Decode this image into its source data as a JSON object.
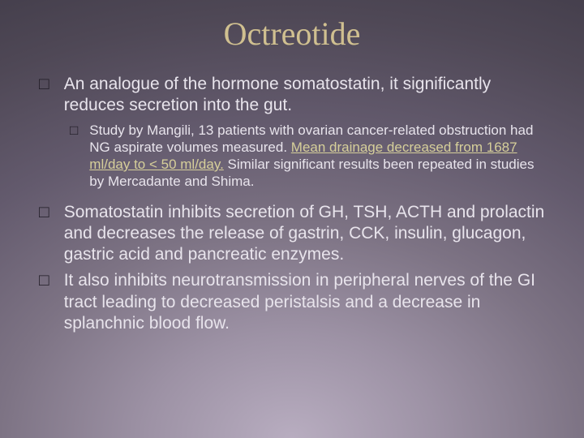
{
  "title": {
    "text": "Octreotide",
    "color": "#d0c090",
    "fontsize": 40
  },
  "bullets": {
    "marker": "□",
    "marker_color": "#1e1a24",
    "text_color": "#e8e4ec",
    "highlight_color": "#d6cf9a",
    "l1_fontsize": 21,
    "l2_fontsize": 17,
    "items": [
      {
        "level": 1,
        "text": "An analogue of the hormone somatostatin, it significantly reduces secretion into the gut."
      },
      {
        "level": 2,
        "pre": "Study by Mangili, 13 patients with ovarian cancer-related obstruction had NG aspirate volumes measured. ",
        "hl": "Mean drainage decreased from 1687 ml/day to < 50 ml/day.",
        "post": " Similar significant results been repeated in studies by Mercadante and Shima."
      },
      {
        "level": 1,
        "text": "Somatostatin inhibits secretion of GH, TSH, ACTH and prolactin and decreases the release of gastrin, CCK, insulin, glucagon, gastric acid and pancreatic enzymes."
      },
      {
        "level": 1,
        "text": "It also inhibits neurotransmission in peripheral nerves of the GI tract leading to decreased peristalsis and a decrease in splanchnic blood flow."
      }
    ]
  },
  "background": {
    "base_colors": [
      "#3f3a47",
      "#7d7384",
      "#b8adc0"
    ]
  }
}
